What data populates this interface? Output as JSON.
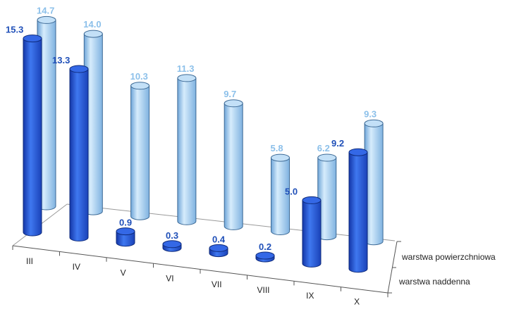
{
  "chart_data": {
    "type": "bar",
    "style": "3d-cylinder",
    "categories": [
      "III",
      "IV",
      "V",
      "VI",
      "VII",
      "VIII",
      "IX",
      "X"
    ],
    "series": [
      {
        "name": "warstwa powierzchniowa",
        "values": [
          14.7,
          14.0,
          10.3,
          11.3,
          9.7,
          5.8,
          6.2,
          9.3
        ],
        "color": "#a9d1f2"
      },
      {
        "name": "warstwa naddenna",
        "values": [
          15.3,
          13.3,
          0.9,
          0.3,
          0.4,
          0.2,
          5.0,
          9.2
        ],
        "color": "#2a5fdc"
      }
    ],
    "labels_back": [
      "14.7",
      "14.0",
      "10.3",
      "11.3",
      "9.7",
      "5.8",
      "6.2",
      "9.3"
    ],
    "labels_front": [
      "15.3",
      "13.3",
      "0.9",
      "0.3",
      "0.4",
      "0.2",
      "5.0",
      "9.2"
    ],
    "title": "",
    "xlabel": "",
    "ylabel": "",
    "grid": false
  }
}
